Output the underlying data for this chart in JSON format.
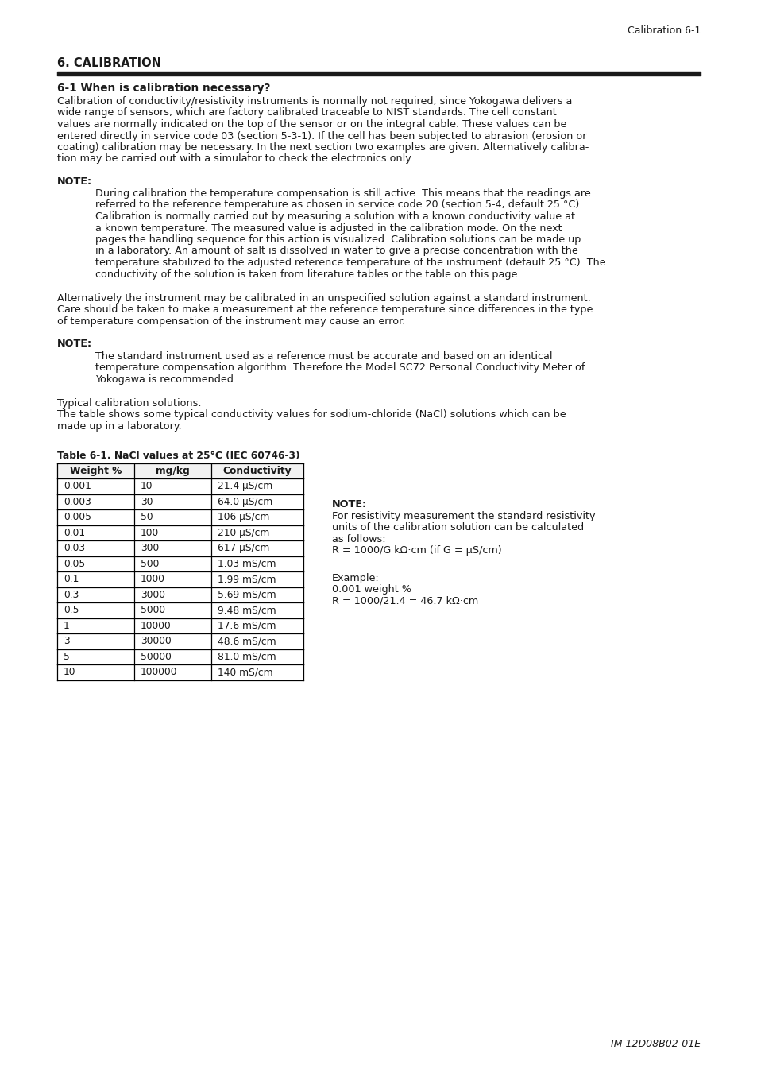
{
  "page_header": "Calibration 6-1",
  "section_title": "6. CALIBRATION",
  "subsection_title": "6-1 When is calibration necessary?",
  "para1_lines": [
    "Calibration of conductivity/resistivity instruments is normally not required, since Yokogawa delivers a",
    "wide range of sensors, which are factory calibrated traceable to NIST standards. The cell constant",
    "values are normally indicated on the top of the sensor or on the integral cable. These values can be",
    "entered directly in service code 03 (section 5-3-1). If the cell has been subjected to abrasion (erosion or",
    "coating) calibration may be necessary. In the next section two examples are given. Alternatively calibra-",
    "tion may be carried out with a simulator to check the electronics only."
  ],
  "note1_label": "NOTE",
  "note1_lines": [
    "During calibration the temperature compensation is still active. This means that the readings are",
    "referred to the reference temperature as chosen in service code 20 (section 5-4, default 25 °C).",
    "Calibration is normally carried out by measuring a solution with a known conductivity value at",
    "a known temperature. The measured value is adjusted in the calibration mode. On the next",
    "pages the handling sequence for this action is visualized. Calibration solutions can be made up",
    "in a laboratory. An amount of salt is dissolved in water to give a precise concentration with the",
    "temperature stabilized to the adjusted reference temperature of the instrument (default 25 °C). The",
    "conductivity of the solution is taken from literature tables or the table on this page."
  ],
  "para2_lines": [
    "Alternatively the instrument may be calibrated in an unspecified solution against a standard instrument.",
    "Care should be taken to make a measurement at the reference temperature since differences in the type",
    "of temperature compensation of the instrument may cause an error."
  ],
  "note2_label": "NOTE",
  "note2_lines": [
    "The standard instrument used as a reference must be accurate and based on an identical",
    "temperature compensation algorithm. Therefore the Model SC72 Personal Conductivity Meter of",
    "Yokogawa is recommended."
  ],
  "para3_lines": [
    "Typical calibration solutions.",
    "The table shows some typical conductivity values for sodium-chloride (NaCl) solutions which can be",
    "made up in a laboratory."
  ],
  "table_title": "Table 6-1. NaCl values at 25°C (IEC 60746-3)",
  "table_headers": [
    "Weight %",
    "mg/kg",
    "Conductivity"
  ],
  "table_rows": [
    [
      "0.001",
      "10",
      "21.4 μS/cm"
    ],
    [
      "0.003",
      "30",
      "64.0 μS/cm"
    ],
    [
      "0.005",
      "50",
      "106 μS/cm"
    ],
    [
      "0.01",
      "100",
      "210 μS/cm"
    ],
    [
      "0.03",
      "300",
      "617 μS/cm"
    ],
    [
      "0.05",
      "500",
      "1.03 mS/cm"
    ],
    [
      "0.1",
      "1000",
      "1.99 mS/cm"
    ],
    [
      "0.3",
      "3000",
      "5.69 mS/cm"
    ],
    [
      "0.5",
      "5000",
      "9.48 mS/cm"
    ],
    [
      "1",
      "10000",
      "17.6 mS/cm"
    ],
    [
      "3",
      "30000",
      "48.6 mS/cm"
    ],
    [
      "5",
      "50000",
      "81.0 mS/cm"
    ],
    [
      "10",
      "100000",
      "140 mS/cm"
    ]
  ],
  "note3_label": "NOTE",
  "note3_lines": [
    "For resistivity measurement the standard resistivity",
    "units of the calibration solution can be calculated",
    "as follows:",
    "R = 1000/G kΩ·cm (if G = μS/cm)"
  ],
  "example_lines": [
    "Example:",
    "0.001 weight %",
    "R = 1000/21.4 = 46.7 kΩ·cm"
  ],
  "page_footer": "IM 12D08B02-01E",
  "bg_color": "#ffffff",
  "text_color": "#1a1a1a",
  "rule_color": "#1a1a1a"
}
